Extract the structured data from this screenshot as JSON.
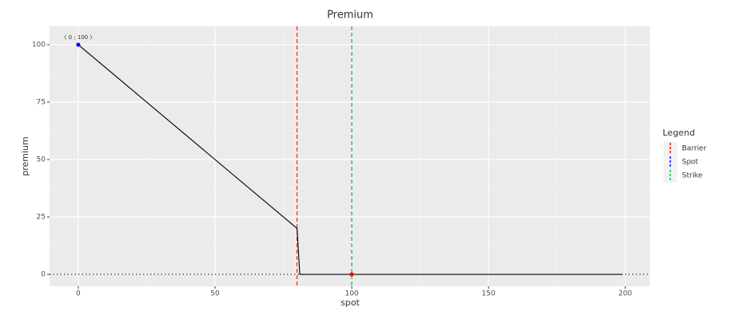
{
  "chart_data": {
    "type": "line",
    "title": "Premium",
    "x_label": "spot",
    "y_label": "premium",
    "x": [
      0,
      80,
      81,
      199
    ],
    "series": [
      {
        "values": [
          100,
          20,
          0,
          0
        ],
        "color": "#000000"
      }
    ],
    "vlines": [
      {
        "name": "Barrier",
        "x": 80,
        "color": "#ff0000"
      },
      {
        "name": "Spot",
        "x": 100,
        "color": "#0000ff"
      },
      {
        "name": "Strike",
        "x": 100,
        "color": "#00c040"
      }
    ],
    "hline": {
      "y": 0,
      "color": "#000000"
    },
    "points": [
      {
        "x": 0,
        "y": 100,
        "color": "#0000ff",
        "label": "( 0 ; 100 )"
      },
      {
        "x": 100,
        "y": 0,
        "color": "#ff0000"
      }
    ],
    "legend_title": "Legend",
    "xlim": [
      -10.5,
      209
    ],
    "ylim": [
      -5.2,
      108
    ],
    "xticks": [
      0,
      50,
      100,
      150,
      200
    ],
    "yticks": [
      0,
      25,
      50,
      75,
      100
    ],
    "grid": true
  }
}
